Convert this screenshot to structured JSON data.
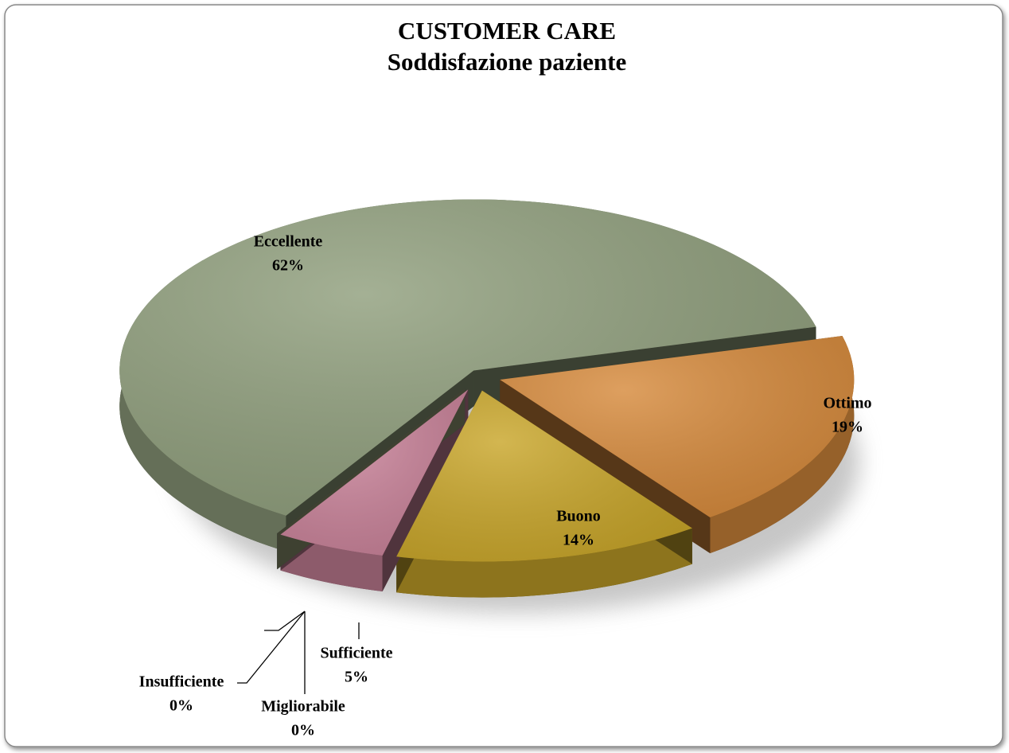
{
  "chart_data": {
    "type": "pie",
    "title": "CUSTOMER CARE",
    "subtitle": "Soddisfazione paziente",
    "categories": [
      "Eccellente",
      "Ottimo",
      "Buono",
      "Sufficiente",
      "Migliorabile",
      "Insufficiente"
    ],
    "values": [
      62,
      19,
      14,
      5,
      0,
      0
    ],
    "value_labels": [
      "62%",
      "19%",
      "14%",
      "5%",
      "0%",
      "0%"
    ],
    "colors": [
      "#909f7d",
      "#d68a3c",
      "#c9a62a",
      "#c98299",
      "#7f8fb5",
      "#9aa37a"
    ]
  }
}
